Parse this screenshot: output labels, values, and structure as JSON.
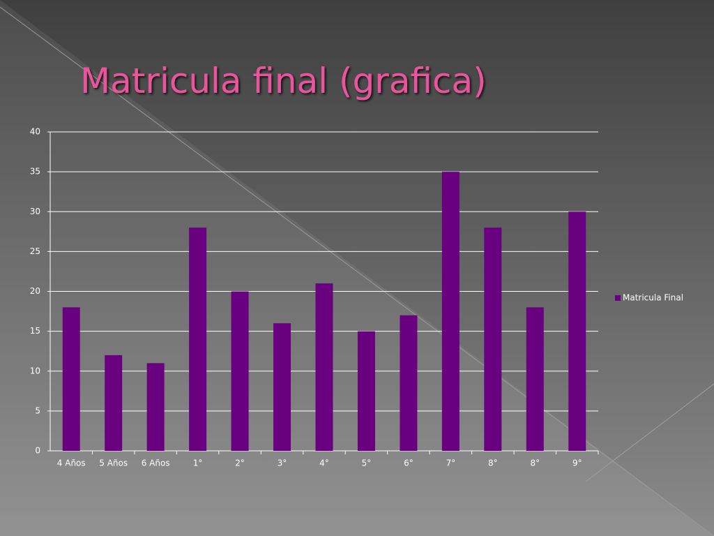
{
  "chart_data": {
    "type": "bar",
    "title": "Matricula final (grafica)",
    "categories": [
      "4 Años",
      "5 Años",
      "6 Años",
      "1°",
      "2°",
      "3°",
      "4°",
      "5°",
      "6°",
      "7°",
      "8°",
      "8°",
      "9°"
    ],
    "series": [
      {
        "name": "Matricula Final",
        "color": "#68007f",
        "values": [
          18,
          12,
          11,
          28,
          20,
          16,
          21,
          15,
          17,
          35,
          28,
          18,
          30
        ]
      }
    ],
    "ylim": [
      0,
      40
    ],
    "yticks": [
      0,
      5,
      10,
      15,
      20,
      25,
      30,
      35,
      40
    ],
    "grid": true,
    "legend": "right"
  }
}
